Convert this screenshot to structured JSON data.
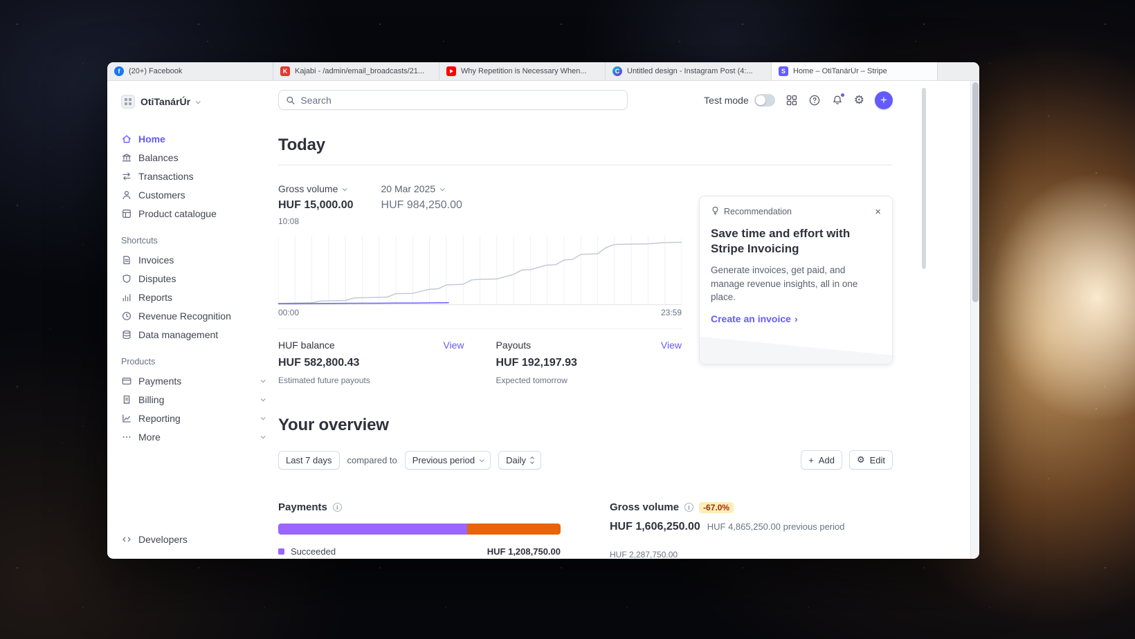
{
  "theme": {
    "accent": "#635bff",
    "succeeded_purple": "#9a66ff",
    "bar_orange": "#e8630a",
    "badge_bg": "#fcedb9",
    "badge_text": "#a82c00"
  },
  "browser": {
    "tabs": [
      {
        "label": "(20+) Facebook",
        "icon": "facebook-icon"
      },
      {
        "label": "Kajabi - /admin/email_broadcasts/21...",
        "icon": "kajabi-icon"
      },
      {
        "label": "Why Repetition is Necessary When...",
        "icon": "youtube-icon"
      },
      {
        "label": "Untitled design - Instagram Post (4:...",
        "icon": "canva-icon"
      },
      {
        "label": "Home – OtiTanárÚr – Stripe",
        "icon": "stripe-icon"
      }
    ]
  },
  "sidebar": {
    "workspace": "OtiTanárÚr",
    "items": [
      {
        "label": "Home"
      },
      {
        "label": "Balances"
      },
      {
        "label": "Transactions"
      },
      {
        "label": "Customers"
      },
      {
        "label": "Product catalogue"
      }
    ],
    "shortcuts_title": "Shortcuts",
    "shortcuts": [
      {
        "label": "Invoices"
      },
      {
        "label": "Disputes"
      },
      {
        "label": "Reports"
      },
      {
        "label": "Revenue Recognition"
      },
      {
        "label": "Data management"
      }
    ],
    "products_title": "Products",
    "products": [
      {
        "label": "Payments"
      },
      {
        "label": "Billing"
      },
      {
        "label": "Reporting"
      },
      {
        "label": "More"
      }
    ],
    "developers_label": "Developers"
  },
  "topbar": {
    "search_placeholder": "Search",
    "test_mode_label": "Test mode"
  },
  "today": {
    "heading": "Today",
    "metric_label": "Gross volume",
    "metric_value": "HUF 15,000.00",
    "metric_time": "10:08",
    "compare_label": "20 Mar 2025",
    "compare_value": "HUF 984,250.00",
    "x_start": "00:00",
    "x_end": "23:59",
    "balance_label": "HUF balance",
    "balance_value": "HUF 582,800.43",
    "balance_sub": "Estimated future payouts",
    "balance_view": "View",
    "payouts_label": "Payouts",
    "payouts_value": "HUF 192,197.93",
    "payouts_sub": "Expected tomorrow",
    "payouts_view": "View"
  },
  "recommendation": {
    "badge": "Recommendation",
    "title": "Save time and effort with Stripe Invoicing",
    "body": "Generate invoices, get paid, and manage revenue insights, all in one place.",
    "cta": "Create an invoice"
  },
  "overview": {
    "heading": "Your overview",
    "range_button": "Last 7 days",
    "compared_to": "compared to",
    "period_button": "Previous period",
    "granularity_button": "Daily",
    "add_button": "Add",
    "edit_button": "Edit",
    "payments": {
      "title": "Payments",
      "succeeded_label": "Succeeded",
      "succeeded_value": "HUF 1,208,750.00"
    },
    "gross_volume": {
      "title": "Gross volume",
      "delta_badge": "-67.0%",
      "value": "HUF 1,606,250.00",
      "previous": "HUF 4,865,250.00 previous period",
      "axis_label": "HUF 2,287,750.00"
    }
  },
  "chart_data": [
    {
      "type": "line",
      "title": "Gross volume — today vs 20 Mar 2025",
      "x_hours": 24,
      "x_axis_labels": [
        "00:00",
        "23:59"
      ],
      "ylim": [
        0,
        1000000
      ],
      "grid": "vertical",
      "series": [
        {
          "name": "Today (HUF 15,000.00, through 10:08)",
          "color": "#635bff",
          "x": [
            0,
            1,
            2,
            3,
            4,
            5,
            6,
            7,
            8,
            9,
            10,
            10.15
          ],
          "values": [
            0,
            500,
            1000,
            2500,
            4000,
            5000,
            6000,
            7500,
            9000,
            11000,
            14000,
            15000
          ]
        },
        {
          "name": "20 Mar 2025 (HUF 984,250.00)",
          "color": "#c3cad4",
          "x": [
            0,
            1,
            2,
            2.5,
            3,
            4,
            4.5,
            5,
            6,
            6.5,
            7,
            8,
            9,
            9.5,
            10,
            11,
            11.5,
            12,
            13,
            14,
            14.5,
            15,
            16,
            16.5,
            17,
            17.5,
            18,
            19,
            19.5,
            20,
            21,
            22,
            23,
            24
          ],
          "values": [
            0,
            8000,
            15000,
            40000,
            45000,
            50000,
            90000,
            95000,
            100000,
            105000,
            160000,
            165000,
            230000,
            235000,
            300000,
            310000,
            380000,
            390000,
            395000,
            470000,
            540000,
            545000,
            620000,
            625000,
            700000,
            710000,
            790000,
            800000,
            900000,
            950000,
            955000,
            960000,
            980000,
            984250
          ]
        }
      ]
    },
    {
      "type": "bar-stacked",
      "title": "Payments",
      "segments": [
        {
          "name": "Succeeded",
          "color": "#9a66ff",
          "pct": 67
        },
        {
          "color": "#e8630a",
          "pct": 33
        }
      ]
    },
    {
      "type": "line",
      "title": "Gross volume sparkline (partially cut off)",
      "color": "#b9c0ca",
      "points": [
        [
          0,
          16
        ],
        [
          90,
          15
        ],
        [
          130,
          16
        ],
        [
          150,
          3
        ],
        [
          168,
          15
        ],
        [
          230,
          16
        ],
        [
          409,
          16
        ]
      ]
    }
  ]
}
